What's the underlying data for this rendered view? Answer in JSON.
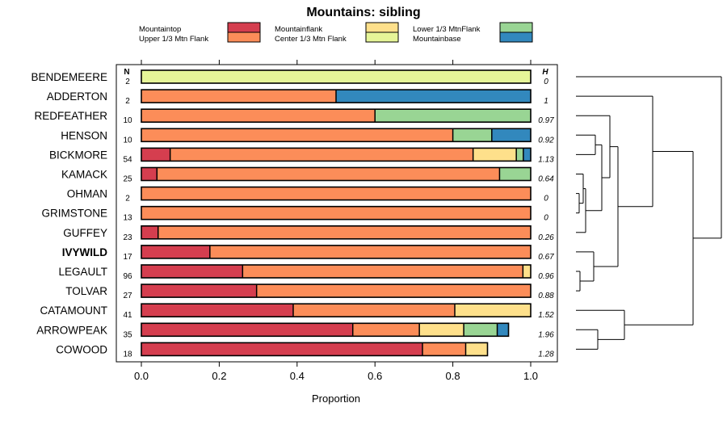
{
  "chart_data": {
    "type": "bar",
    "stacked": true,
    "orientation": "horizontal",
    "title": "Mountains: sibling",
    "xlabel": "Proportion",
    "xlim": [
      0,
      1
    ],
    "xticks": [
      "0.0",
      "0.2",
      "0.4",
      "0.6",
      "0.8",
      "1.0"
    ],
    "n_header": "N",
    "h_header": "H",
    "legend": [
      {
        "key": "mountaintop",
        "label": "Mountaintop",
        "color": "#d53e4f"
      },
      {
        "key": "upper",
        "label": "Upper 1/3 Mtn Flank",
        "color": "#fc8d59"
      },
      {
        "key": "flank",
        "label": "Mountainflank",
        "color": "#fee08b"
      },
      {
        "key": "center",
        "label": "Center 1/3 Mtn Flank",
        "color": "#e6f598"
      },
      {
        "key": "lower",
        "label": "Lower 1/3 MtnFlank",
        "color": "#99d594"
      },
      {
        "key": "base",
        "label": "Mountainbase",
        "color": "#3288bd"
      }
    ],
    "rows": [
      {
        "name": "BENDEMEERE",
        "n": "2",
        "h": "0",
        "bold": false,
        "segments": [
          {
            "key": "center",
            "value": 1.0
          }
        ]
      },
      {
        "name": "ADDERTON",
        "n": "2",
        "h": "1",
        "bold": false,
        "segments": [
          {
            "key": "upper",
            "value": 0.5
          },
          {
            "key": "base",
            "value": 0.5
          }
        ]
      },
      {
        "name": "REDFEATHER",
        "n": "10",
        "h": "0.97",
        "bold": false,
        "segments": [
          {
            "key": "upper",
            "value": 0.6
          },
          {
            "key": "lower",
            "value": 0.4
          }
        ]
      },
      {
        "name": "HENSON",
        "n": "10",
        "h": "0.92",
        "bold": false,
        "segments": [
          {
            "key": "upper",
            "value": 0.8
          },
          {
            "key": "lower",
            "value": 0.1
          },
          {
            "key": "base",
            "value": 0.1
          }
        ]
      },
      {
        "name": "BICKMORE",
        "n": "54",
        "h": "1.13",
        "bold": false,
        "segments": [
          {
            "key": "mountaintop",
            "value": 0.074
          },
          {
            "key": "upper",
            "value": 0.778
          },
          {
            "key": "flank",
            "value": 0.111
          },
          {
            "key": "lower",
            "value": 0.018
          },
          {
            "key": "base",
            "value": 0.019
          }
        ]
      },
      {
        "name": "KAMACK",
        "n": "25",
        "h": "0.64",
        "bold": false,
        "segments": [
          {
            "key": "mountaintop",
            "value": 0.04
          },
          {
            "key": "upper",
            "value": 0.88
          },
          {
            "key": "lower",
            "value": 0.08
          }
        ]
      },
      {
        "name": "OHMAN",
        "n": "2",
        "h": "0",
        "bold": false,
        "segments": [
          {
            "key": "upper",
            "value": 1.0
          }
        ]
      },
      {
        "name": "GRIMSTONE",
        "n": "13",
        "h": "0",
        "bold": false,
        "segments": [
          {
            "key": "upper",
            "value": 1.0
          }
        ]
      },
      {
        "name": "GUFFEY",
        "n": "23",
        "h": "0.26",
        "bold": false,
        "segments": [
          {
            "key": "mountaintop",
            "value": 0.043
          },
          {
            "key": "upper",
            "value": 0.957
          }
        ]
      },
      {
        "name": "IVYWILD",
        "n": "17",
        "h": "0.67",
        "bold": true,
        "segments": [
          {
            "key": "mountaintop",
            "value": 0.176
          },
          {
            "key": "upper",
            "value": 0.824
          }
        ]
      },
      {
        "name": "LEGAULT",
        "n": "96",
        "h": "0.96",
        "bold": false,
        "segments": [
          {
            "key": "mountaintop",
            "value": 0.26
          },
          {
            "key": "upper",
            "value": 0.72
          },
          {
            "key": "flank",
            "value": 0.02
          }
        ]
      },
      {
        "name": "TOLVAR",
        "n": "27",
        "h": "0.88",
        "bold": false,
        "segments": [
          {
            "key": "mountaintop",
            "value": 0.296
          },
          {
            "key": "upper",
            "value": 0.704
          }
        ]
      },
      {
        "name": "CATAMOUNT",
        "n": "41",
        "h": "1.52",
        "bold": false,
        "segments": [
          {
            "key": "mountaintop",
            "value": 0.39
          },
          {
            "key": "upper",
            "value": 0.415
          },
          {
            "key": "flank",
            "value": 0.195
          }
        ]
      },
      {
        "name": "ARROWPEAK",
        "n": "35",
        "h": "1.96",
        "bold": false,
        "segments": [
          {
            "key": "mountaintop",
            "value": 0.543
          },
          {
            "key": "upper",
            "value": 0.171
          },
          {
            "key": "flank",
            "value": 0.114
          },
          {
            "key": "lower",
            "value": 0.086
          },
          {
            "key": "base",
            "value": 0.029
          }
        ]
      },
      {
        "name": "COWOOD",
        "n": "18",
        "h": "1.28",
        "bold": false,
        "segments": [
          {
            "key": "mountaintop",
            "value": 0.722
          },
          {
            "key": "upper",
            "value": 0.111
          },
          {
            "key": "flank",
            "value": 0.056
          }
        ]
      }
    ]
  }
}
